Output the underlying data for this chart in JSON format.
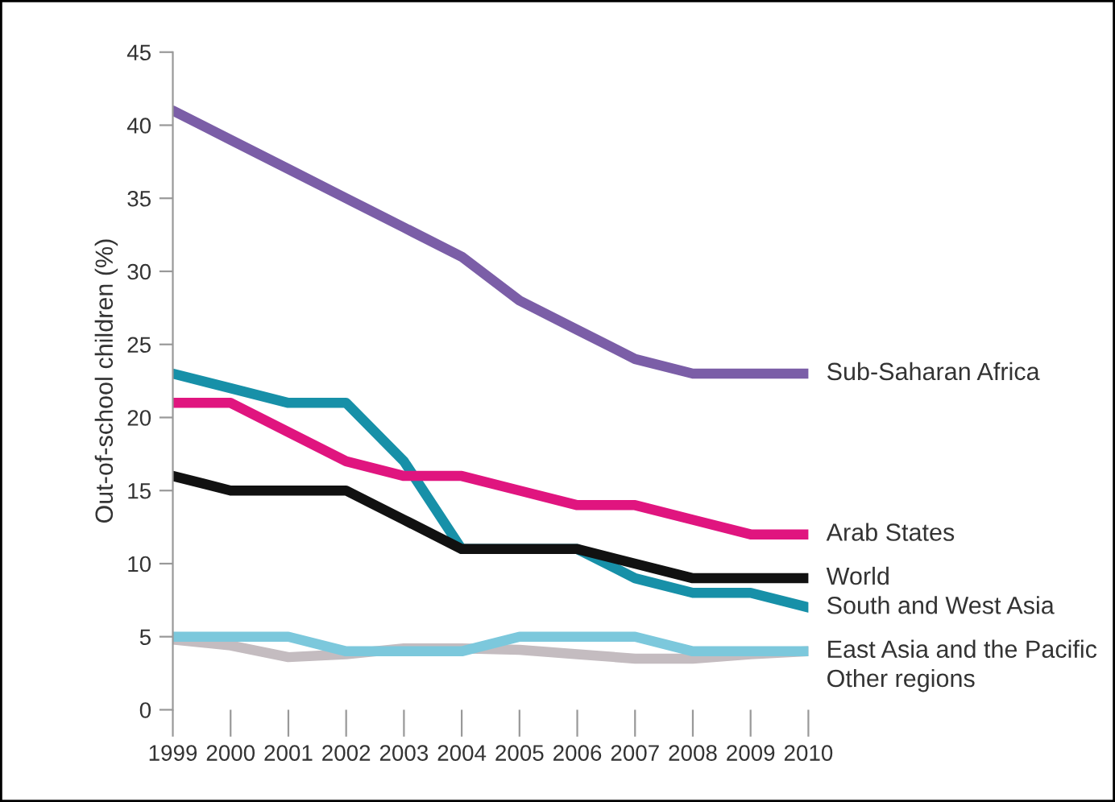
{
  "chart_data": {
    "type": "line",
    "ylabel": "Out-of-school children (%)",
    "x": [
      1999,
      2000,
      2001,
      2002,
      2003,
      2004,
      2005,
      2006,
      2007,
      2008,
      2009,
      2010
    ],
    "xlim": [
      1999,
      2010
    ],
    "xticks": [
      1999,
      2000,
      2001,
      2002,
      2003,
      2004,
      2005,
      2006,
      2007,
      2008,
      2009,
      2010
    ],
    "ylim": [
      0,
      45
    ],
    "yticks": [
      0,
      5,
      10,
      15,
      20,
      25,
      30,
      35,
      40,
      45
    ],
    "grid": false,
    "legend": false,
    "marker": "none",
    "line_style": "solid",
    "series": [
      {
        "name": "Sub-Saharan Africa",
        "color": "#7b5ea7",
        "values": [
          41,
          39,
          37,
          35,
          33,
          31,
          28,
          26,
          24,
          23,
          23,
          23
        ]
      },
      {
        "name": "Arab States",
        "color": "#e0157f",
        "values": [
          21,
          21,
          19,
          17,
          16,
          16,
          15,
          14,
          14,
          13,
          12,
          12
        ]
      },
      {
        "name": "World",
        "color": "#111111",
        "values": [
          16,
          15,
          15,
          15,
          13,
          11,
          11,
          11,
          10,
          9,
          9,
          9
        ]
      },
      {
        "name": "South and West Asia",
        "color": "#1790a8",
        "values": [
          23,
          22,
          21,
          21,
          17,
          11,
          11,
          11,
          9,
          8,
          8,
          7
        ]
      },
      {
        "name": "East Asia and the Pacific",
        "color": "#7cc8dc",
        "values": [
          5,
          5,
          5,
          4,
          4,
          4,
          5,
          5,
          5,
          4,
          4,
          4
        ]
      },
      {
        "name": "Other regions",
        "color": "#c4bcc0",
        "values": [
          4.8,
          4.4,
          3.6,
          3.8,
          4.2,
          4.2,
          4.1,
          3.8,
          3.5,
          3.5,
          3.8,
          4.0
        ]
      }
    ]
  }
}
